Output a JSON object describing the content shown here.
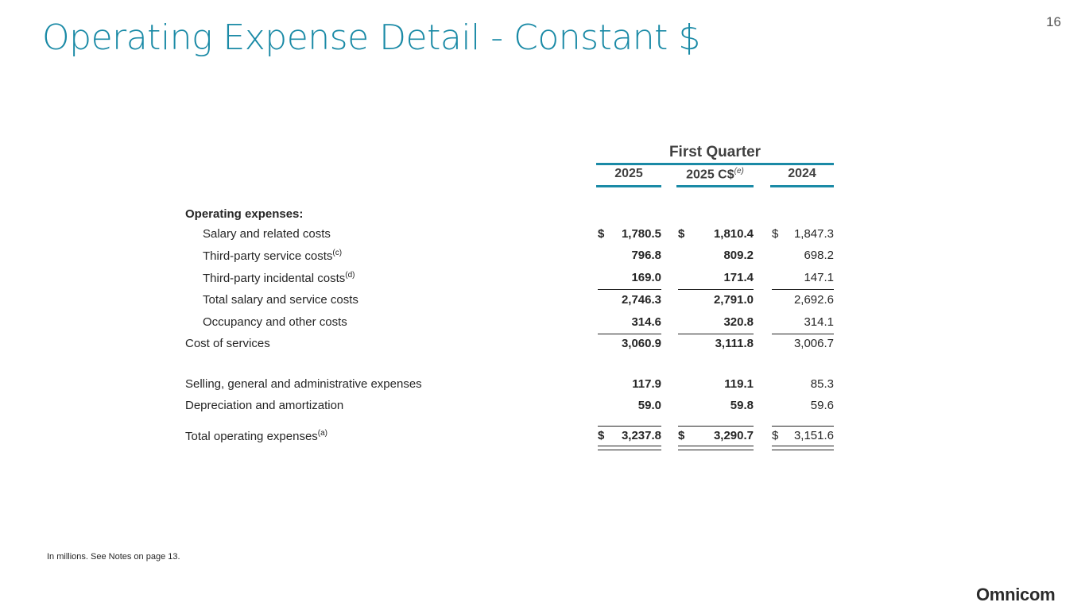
{
  "title": "Operating Expense Detail - Constant $",
  "page_number": "16",
  "table": {
    "group_header": "First Quarter",
    "columns": [
      {
        "label": "2025",
        "note": ""
      },
      {
        "label": "2025 C$",
        "note": "(e)"
      },
      {
        "label": "2024",
        "note": ""
      }
    ],
    "section_label": "Operating expenses:",
    "rows": [
      {
        "label": "Salary and related costs",
        "note": "",
        "values": [
          "1,780.5",
          "1,810.4",
          "1,847.3"
        ],
        "dollar": true
      },
      {
        "label": "Third-party service costs",
        "note": "(c)",
        "values": [
          "796.8",
          "809.2",
          "698.2"
        ]
      },
      {
        "label": "Third-party incidental costs",
        "note": "(d)",
        "values": [
          "169.0",
          "171.4",
          "147.1"
        ]
      },
      {
        "label": "Total salary and service costs",
        "note": "",
        "values": [
          "2,746.3",
          "2,791.0",
          "2,692.6"
        ]
      },
      {
        "label": "Occupancy and other costs",
        "note": "",
        "values": [
          "314.6",
          "320.8",
          "314.1"
        ]
      },
      {
        "label": "Cost of services",
        "note": "",
        "values": [
          "3,060.9",
          "3,111.8",
          "3,006.7"
        ]
      },
      {
        "label": "Selling, general and administrative expenses",
        "note": "",
        "values": [
          "117.9",
          "119.1",
          "85.3"
        ]
      },
      {
        "label": "Depreciation and amortization",
        "note": "",
        "values": [
          "59.0",
          "59.8",
          "59.6"
        ]
      },
      {
        "label": "Total operating expenses",
        "note": "(a)",
        "values": [
          "3,237.8",
          "3,290.7",
          "3,151.6"
        ],
        "dollar": true
      }
    ],
    "currency_symbol": "$"
  },
  "footnote": "In millions.  See Notes on page 13.",
  "logo": "Omnicom",
  "colors": {
    "accent": "#1a8aa6",
    "text": "#262626"
  }
}
